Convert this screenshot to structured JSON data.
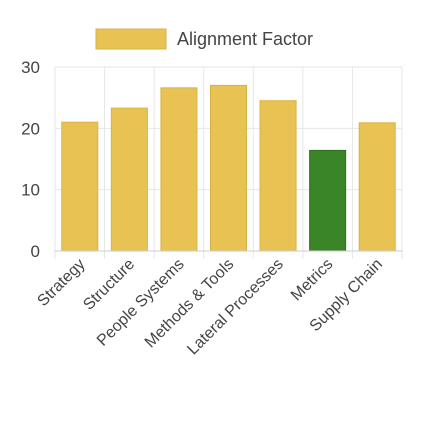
{
  "chart_data": {
    "type": "bar",
    "categories": [
      "Strategy",
      "Structure",
      "People Systems",
      "Methods & Tools",
      "Lateral Processes",
      "Metrics",
      "Supply Chain"
    ],
    "series": [
      {
        "name": "Alignment Factor",
        "values": [
          21,
          23.3,
          26.6,
          27,
          24.5,
          16.4,
          20.9
        ]
      }
    ],
    "ylim": [
      0,
      30
    ],
    "yticks": [
      0,
      10,
      20,
      30
    ],
    "grid": true,
    "legend_position": "top",
    "colors": {
      "default_bar": "#E8C354",
      "default_bar_border": "#D9B244",
      "highlight_bar": "#3A8527",
      "highlight_bar_border": "#2E6E1E",
      "grid": "#E6E6E6",
      "axis": "#CCCCCC",
      "text": "#444444"
    },
    "highlight_category": "Metrics"
  }
}
